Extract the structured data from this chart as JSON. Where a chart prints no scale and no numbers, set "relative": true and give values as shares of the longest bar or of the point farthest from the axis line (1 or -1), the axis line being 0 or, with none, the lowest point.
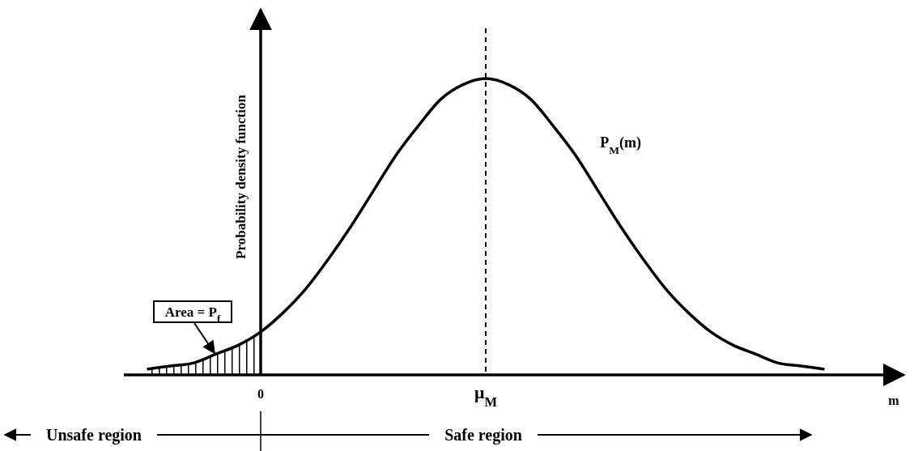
{
  "chart_data": {
    "type": "line",
    "xlabel": "m",
    "ylabel": "Probability density function",
    "relative": true,
    "tick_labels": "x",
    "categories": [
      null,
      null,
      null,
      null,
      null,
      "0",
      null,
      null,
      null,
      null,
      null,
      null,
      null,
      null,
      null,
      "μ$_{M}$",
      null,
      null,
      null,
      null,
      null,
      null,
      null,
      null,
      null,
      null,
      null,
      null,
      null,
      null,
      null
    ],
    "series": [
      {
        "name": "P$_{M}$(m)",
        "color": "#000000",
        "values": [
          0.02,
          0.03,
          0.04,
          0.07,
          0.1,
          0.145,
          0.21,
          0.29,
          0.39,
          0.5,
          0.62,
          0.74,
          0.84,
          0.93,
          0.98,
          1,
          0.98,
          0.93,
          0.84,
          0.74,
          0.62,
          0.5,
          0.39,
          0.29,
          0.21,
          0.145,
          0.1,
          0.07,
          0.04,
          0.03,
          0.02
        ]
      },
      {
        "type": "area",
        "color": "#000000",
        "values": [
          0.02,
          0.03,
          0.04,
          0.07,
          0.1,
          0.145,
          null,
          null,
          null,
          null,
          null,
          null,
          null,
          null,
          null,
          null,
          null,
          null,
          null,
          null,
          null,
          null,
          null,
          null,
          null,
          null,
          null,
          null,
          null,
          null,
          null
        ]
      }
    ],
    "ref_lines": [
      {
        "axis": "x",
        "value": "μ$_{M}$",
        "line_style": "dashed"
      }
    ],
    "annotations": [
      "Area = P$_{f}$",
      "Unsafe region",
      "Safe region"
    ]
  }
}
